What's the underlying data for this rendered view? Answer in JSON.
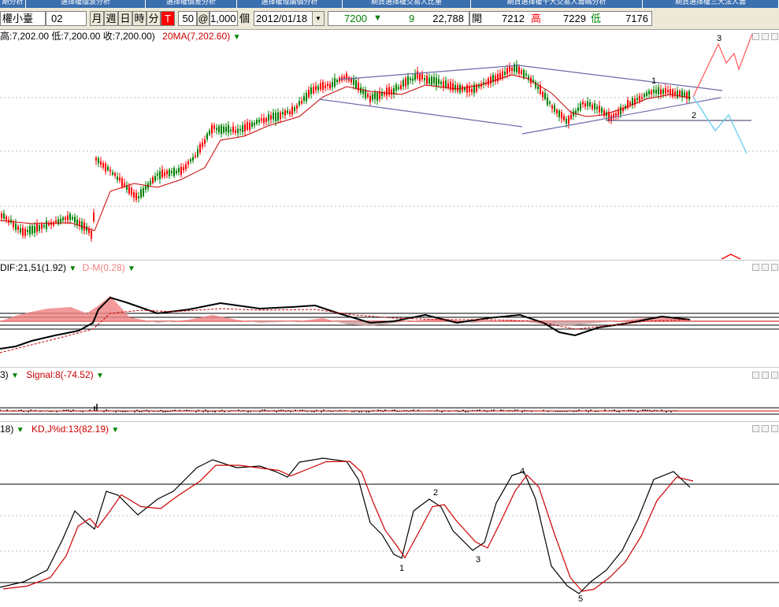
{
  "menu_tabs": [
    "期分析",
    "選擇權隱波分析",
    "選擇權價差分析",
    "選擇權理論價分析",
    "期貨選擇權交易人比重",
    "期貨選擇權十大交易人籌碼分析",
    "期貨選擇權三大法人籌"
  ],
  "toolbar": {
    "symbol": "權小臺",
    "contract": "02",
    "period_buttons": [
      "月",
      "週",
      "日",
      "時",
      "分"
    ],
    "active_period": "T",
    "interval": "50",
    "at_sign": "@",
    "count": "1,000",
    "count_unit": "個",
    "date": "2012/01/18",
    "last_price": "7200",
    "change": "9",
    "volume": "22,788",
    "open_label": "開",
    "open": "7212",
    "high_label": "高",
    "high": "7229",
    "low_label": "低",
    "low": "7176"
  },
  "price_panel": {
    "ohlc_text": "高:7,202.00 低:7,200.00 收:7,200.00)",
    "ma_label": "20MA(7,202.60)",
    "wave_labels": [
      "1",
      "2",
      "3"
    ]
  },
  "macd_panel": {
    "dif_label": "DIF:21,51(1.92)",
    "dm_label": "D-M(0.28)"
  },
  "signal_panel": {
    "prefix": "3)",
    "signal_label": "Signal:8(-74.52)"
  },
  "kd_panel": {
    "prefix": "18)",
    "kd_label": "KD,J%d:13(82.19)",
    "wave_labels": [
      "1",
      "2",
      "3",
      "4",
      "5"
    ]
  },
  "colors": {
    "up": "#ff0000",
    "down": "#008000",
    "ma": "#cc0000",
    "trend": "#6a6aaa",
    "menu_bg": "#3a6fb0",
    "projection_up": "#ff6060",
    "projection_down": "#66ccee"
  },
  "icons": [
    "down-arrow-icon",
    "dropdown-chevron-icon",
    "minimize-icon",
    "restore-icon",
    "close-icon"
  ]
}
